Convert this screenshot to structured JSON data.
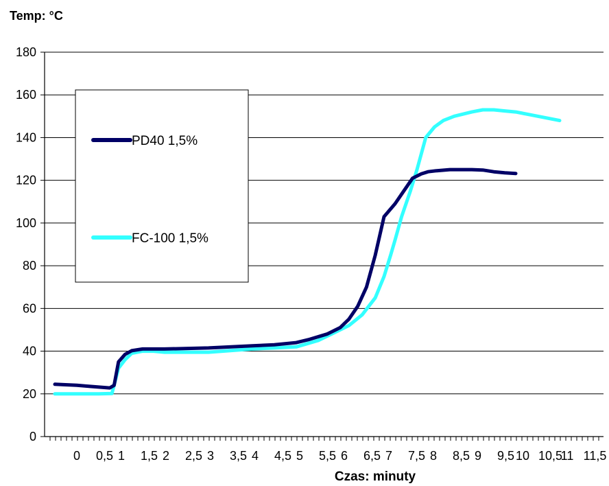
{
  "chart_data": {
    "type": "line",
    "title": "",
    "ylabel": "Temp: °C",
    "xlabel": "Czas: minuty",
    "ylim": [
      0,
      180
    ],
    "yticks": [
      0,
      20,
      40,
      60,
      80,
      100,
      120,
      140,
      160,
      180
    ],
    "xticklabels": [
      "0",
      "0,5",
      "1",
      "1,5",
      "2",
      "2,5",
      "3",
      "3,5",
      "4",
      "4,5",
      "5",
      "5,5",
      "6",
      "6,5",
      "7",
      "7,5",
      "8",
      "8,5",
      "9",
      "9,5",
      "10",
      "10,5",
      "11",
      "11,5"
    ],
    "grid": "horizontal",
    "legend": "left",
    "series": [
      {
        "name": "PD40 1,5%",
        "color": "#000066",
        "x": [
          -0.5,
          -0.3,
          0,
          0.3,
          0.6,
          0.75,
          0.85,
          0.95,
          1.1,
          1.25,
          1.5,
          2,
          3,
          4,
          4.5,
          5,
          5.3,
          5.7,
          6,
          6.2,
          6.4,
          6.6,
          6.8,
          7,
          7.25,
          7.45,
          7.65,
          7.85,
          8.0,
          8.2,
          8.5,
          9,
          9.25,
          9.5,
          9.75,
          10.0
        ],
        "y": [
          24.5,
          24.3,
          24,
          23.5,
          23,
          22.8,
          24,
          35,
          38.5,
          40.2,
          41,
          41,
          41.5,
          42.5,
          43,
          44,
          45.5,
          48,
          51,
          55,
          61,
          70,
          85,
          103,
          109,
          115,
          121,
          123,
          124,
          124.5,
          125,
          125,
          124.8,
          124,
          123.5,
          123.2
        ]
      },
      {
        "name": "FC-100 1,5%",
        "color": "#33ffff",
        "x": [
          -0.5,
          0,
          0.5,
          0.8,
          0.95,
          1.1,
          1.25,
          1.5,
          1.75,
          2,
          3,
          4,
          4.5,
          5,
          5.5,
          5.8,
          6.2,
          6.5,
          6.8,
          7,
          7.15,
          7.25,
          7.4,
          7.6,
          7.75,
          7.95,
          8.15,
          8.35,
          8.6,
          9.0,
          9.25,
          9.5,
          9.75,
          10.0,
          10.25,
          10.5,
          10.75,
          11.0
        ],
        "y": [
          20,
          20,
          20,
          20.2,
          32,
          36,
          39,
          40,
          40,
          39.5,
          39.5,
          41,
          41.5,
          42,
          45,
          48,
          52,
          57,
          65,
          75,
          85,
          92,
          103,
          115,
          125,
          140,
          145,
          148,
          150,
          152,
          153,
          153,
          152.5,
          152,
          151,
          150,
          149,
          148
        ]
      }
    ]
  }
}
